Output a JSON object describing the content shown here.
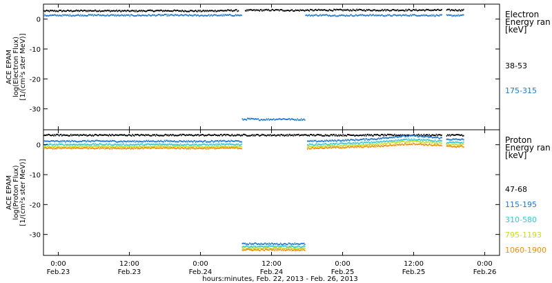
{
  "x_axis": {
    "title": "hours:minutes, Feb. 22, 2013 - Feb. 26, 2013",
    "ticks": [
      {
        "t": 0,
        "time": "0:00",
        "date": "Feb.23"
      },
      {
        "t": 12,
        "time": "12:00",
        "date": "Feb.23"
      },
      {
        "t": 24,
        "time": "0:00",
        "date": "Feb.24"
      },
      {
        "t": 36,
        "time": "12:00",
        "date": "Feb.24"
      },
      {
        "t": 48,
        "time": "0:00",
        "date": "Feb.25"
      },
      {
        "t": 60,
        "time": "12:00",
        "date": "Feb.25"
      },
      {
        "t": 72,
        "time": "0:00",
        "date": "Feb.26"
      }
    ]
  },
  "chart_data": [
    {
      "type": "scatter",
      "title": "",
      "ylabel": [
        "ACE EPAM",
        "log(Electron Flux)",
        "[1/(cm²s ster MeV)]"
      ],
      "xlim": [
        -2.5,
        74.5
      ],
      "ylim": [
        -37,
        5
      ],
      "y_ticks": [
        0,
        -10,
        -20,
        -30
      ],
      "x_units": "hours from 0:00 Feb.23, 2013",
      "legend": {
        "title": [
          "Electron",
          "Energy ran",
          "[keV]"
        ],
        "placement": "right"
      },
      "series": [
        {
          "name": "38-53",
          "color": "#000000",
          "segments": [
            {
              "x": [
                -2.5,
                6,
                12,
                18,
                24,
                30,
                30.5
              ],
              "y": [
                2.7,
                2.8,
                2.7,
                2.8,
                2.7,
                2.9,
                2.8
              ]
            },
            {
              "x": [
                31.5,
                36,
                40,
                44,
                48,
                52,
                56,
                60,
                64.8
              ],
              "y": [
                2.9,
                3.0,
                2.9,
                3.0,
                3.0,
                3.0,
                3.0,
                3.0,
                3.0
              ]
            },
            {
              "x": [
                65.5,
                68.5
              ],
              "y": [
                3.0,
                3.0
              ]
            }
          ]
        },
        {
          "name": "175-315",
          "color": "#1e78d2",
          "segments": [
            {
              "x": [
                -2.5,
                6,
                12,
                18,
                24,
                30,
                31
              ],
              "y": [
                1.2,
                1.3,
                1.2,
                1.3,
                1.2,
                1.3,
                1.2
              ]
            },
            {
              "x": [
                31,
                32,
                34,
                36,
                38,
                40,
                41.7
              ],
              "y": [
                -33.6,
                -33.4,
                -33.6,
                -33.5,
                -33.4,
                -33.6,
                -33.5
              ]
            },
            {
              "x": [
                41.7,
                44,
                48,
                52,
                56,
                60,
                64.8
              ],
              "y": [
                1.2,
                1.3,
                1.2,
                1.3,
                1.2,
                1.3,
                1.2
              ]
            },
            {
              "x": [
                65.5,
                68.5
              ],
              "y": [
                1.2,
                1.2
              ]
            }
          ]
        }
      ]
    },
    {
      "type": "scatter",
      "title": "",
      "ylabel": [
        "ACE EPAM",
        "log(Proton Flux)",
        "[1/(cm²s ster MeV)]"
      ],
      "xlim": [
        -2.5,
        74.5
      ],
      "ylim": [
        -37,
        5
      ],
      "y_ticks": [
        0,
        -10,
        -20,
        -30
      ],
      "x_units": "hours from 0:00 Feb.23, 2013",
      "legend": {
        "title": [
          "Proton",
          "Energy ran",
          "[keV]"
        ],
        "placement": "right"
      },
      "series": [
        {
          "name": "47-68",
          "color": "#000000",
          "segments": [
            {
              "x": [
                -2.5,
                6,
                12,
                18,
                24,
                30,
                31
              ],
              "y": [
                3.2,
                3.2,
                3.2,
                3.2,
                3.2,
                3.2,
                3.2
              ]
            },
            {
              "x": [
                31,
                36,
                42,
                48,
                54,
                60,
                64.8
              ],
              "y": [
                3.2,
                3.2,
                3.2,
                3.2,
                3.2,
                3.2,
                3.2
              ]
            },
            {
              "x": [
                65.5,
                68.5
              ],
              "y": [
                3.2,
                3.2
              ]
            }
          ]
        },
        {
          "name": "115-195",
          "color": "#1e78d2",
          "segments": [
            {
              "x": [
                -2.5,
                6,
                12,
                18,
                24,
                30,
                31
              ],
              "y": [
                1.1,
                1.2,
                1.1,
                1.2,
                1.1,
                1.2,
                1.1
              ]
            },
            {
              "x": [
                31,
                34,
                37,
                40,
                41.7
              ],
              "y": [
                -33.2,
                -33.1,
                -33.2,
                -33.1,
                -33.2
              ]
            },
            {
              "x": [
                42,
                46,
                50,
                54,
                56,
                58,
                60,
                62,
                64.8
              ],
              "y": [
                1.1,
                1.3,
                1.6,
                2.0,
                2.5,
                2.8,
                3.0,
                2.6,
                2.2
              ]
            },
            {
              "x": [
                65.5,
                68.5
              ],
              "y": [
                1.8,
                1.7
              ]
            }
          ]
        },
        {
          "name": "310-580",
          "color": "#2ccbd6",
          "segments": [
            {
              "x": [
                -2.5,
                6,
                12,
                18,
                24,
                30,
                31
              ],
              "y": [
                0.0,
                0.1,
                0.0,
                0.1,
                0.0,
                0.1,
                0.0
              ]
            },
            {
              "x": [
                31,
                34,
                37,
                40,
                41.7
              ],
              "y": [
                -34.0,
                -34.1,
                -34.0,
                -34.1,
                -34.0
              ]
            },
            {
              "x": [
                42,
                46,
                50,
                54,
                56,
                58,
                60,
                62,
                64.8
              ],
              "y": [
                0.0,
                0.2,
                0.5,
                0.9,
                1.3,
                1.6,
                1.8,
                1.5,
                1.1
              ]
            },
            {
              "x": [
                65.5,
                68.5
              ],
              "y": [
                0.7,
                0.7
              ]
            }
          ]
        },
        {
          "name": "795-1193",
          "color": "#c8dc1e",
          "segments": [
            {
              "x": [
                -2.5,
                6,
                12,
                18,
                24,
                30,
                31
              ],
              "y": [
                -0.7,
                -0.6,
                -0.7,
                -0.6,
                -0.7,
                -0.6,
                -0.7
              ]
            },
            {
              "x": [
                31,
                34,
                37,
                40,
                41.7
              ],
              "y": [
                -34.6,
                -34.7,
                -34.6,
                -34.7,
                -34.6
              ]
            },
            {
              "x": [
                42,
                46,
                50,
                54,
                56,
                58,
                60,
                62,
                64.8
              ],
              "y": [
                -0.7,
                -0.5,
                -0.2,
                0.2,
                0.6,
                0.9,
                1.1,
                0.8,
                0.4
              ]
            },
            {
              "x": [
                65.5,
                68.5
              ],
              "y": [
                0.0,
                0.0
              ]
            }
          ]
        },
        {
          "name": "1060-1900",
          "color": "#f08c0a",
          "segments": [
            {
              "x": [
                -2.5,
                6,
                12,
                18,
                24,
                30,
                31
              ],
              "y": [
                -1.2,
                -1.1,
                -1.2,
                -1.1,
                -1.2,
                -1.1,
                -1.2
              ]
            },
            {
              "x": [
                31,
                34,
                37,
                40,
                41.7
              ],
              "y": [
                -35.1,
                -35.2,
                -35.1,
                -35.2,
                -35.1
              ]
            },
            {
              "x": [
                42,
                46,
                50,
                54,
                56,
                58,
                60,
                62,
                64.8
              ],
              "y": [
                -1.2,
                -1.0,
                -0.8,
                -0.5,
                -0.2,
                0.1,
                0.3,
                0.0,
                -0.3
              ]
            },
            {
              "x": [
                65.5,
                68.5
              ],
              "y": [
                -0.6,
                -0.6
              ]
            }
          ]
        }
      ]
    }
  ]
}
